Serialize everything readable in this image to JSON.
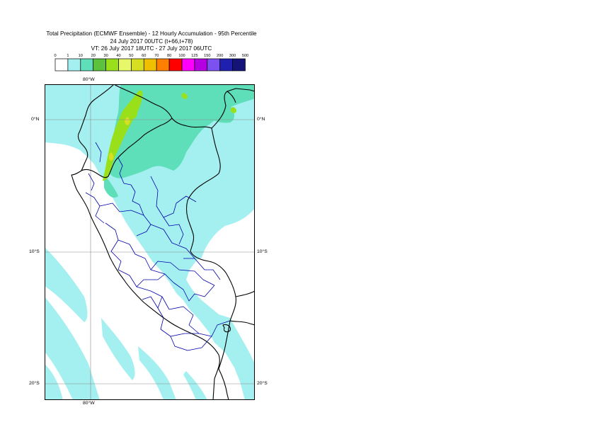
{
  "header": {
    "title": "Total Precipitation (ECMWF Ensemble) - 12 Hourly Accumulation - 95th Percentile",
    "base_time": "24 July 2017 00UTC (t+66,t+78)",
    "valid_time": "VT: 26 July 2017 18UTC - 27 July 2017 06UTC"
  },
  "legend": {
    "thresholds": [
      "0",
      "1",
      "10",
      "20",
      "30",
      "40",
      "50",
      "60",
      "70",
      "80",
      "100",
      "125",
      "150",
      "200",
      "300",
      "500"
    ],
    "colors": [
      "#ffffff",
      "#a4f0f0",
      "#5fdfb9",
      "#5cc23e",
      "#9ae01a",
      "#e6f86a",
      "#d7df22",
      "#f0c000",
      "#ff8000",
      "#ff0000",
      "#ff00ff",
      "#b400e0",
      "#7b52f0",
      "#2020b0",
      "#141478"
    ]
  },
  "map": {
    "colors": {
      "background": "#ffffff",
      "light_precip": "#a4f0f0",
      "moderate_precip": "#5fdfb9",
      "heavy_precip": "#9ae01a",
      "very_heavy_precip": "#d7df22",
      "country_border": "#000000",
      "region_border": "#0000aa",
      "grid": "#888888"
    },
    "lon_labels": {
      "top": "80°W",
      "bottom": "80°W"
    },
    "lat_labels": {
      "eq_left": "0°N",
      "eq_right": "0°N",
      "s10_left": "10°S",
      "s10_right": "10°S",
      "s20_left": "20°S",
      "s20_right": "20°S"
    }
  }
}
